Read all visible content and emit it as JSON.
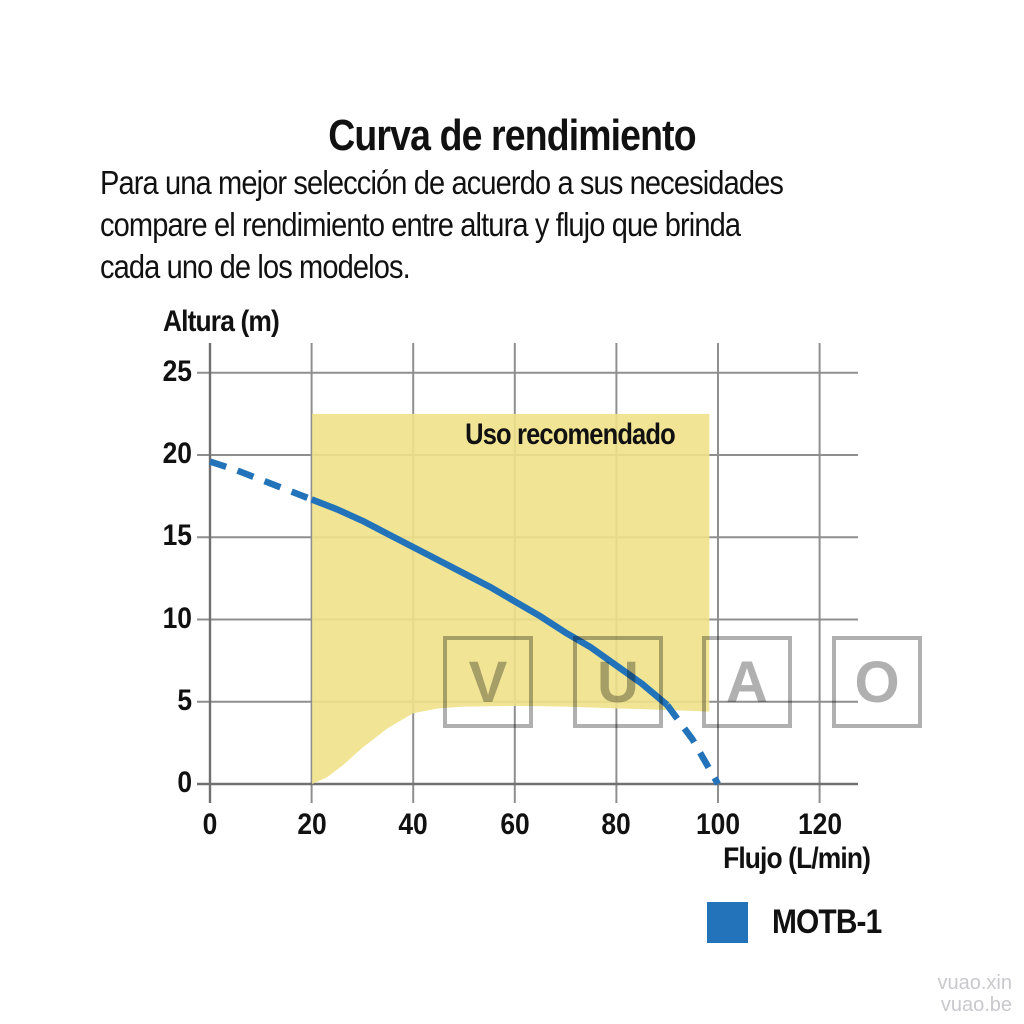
{
  "page": {
    "title": "Curva de rendimiento",
    "intro_lines": [
      "Para una mejor selección de acuerdo a sus necesidades",
      "compare el rendimiento entre altura y flujo que brinda",
      "cada uno de los modelos."
    ]
  },
  "chart_data": {
    "type": "line",
    "title": "Curva de rendimiento",
    "xlabel": "Flujo (L/min)",
    "ylabel": "Altura (m)",
    "xlim": [
      0,
      127
    ],
    "ylim": [
      0,
      26.8
    ],
    "xticks": [
      0,
      20,
      40,
      60,
      80,
      100,
      120
    ],
    "yticks": [
      0,
      5,
      10,
      15,
      20,
      25
    ],
    "grid": true,
    "series": [
      {
        "name": "MOTB-1",
        "color": "#2273b9",
        "segments": [
          {
            "style": "dashed",
            "points": [
              [
                0,
                19.6
              ],
              [
                5,
                19.1
              ],
              [
                10,
                18.5
              ],
              [
                15,
                17.9
              ],
              [
                20,
                17.3
              ]
            ]
          },
          {
            "style": "solid",
            "points": [
              [
                20,
                17.3
              ],
              [
                25,
                16.7
              ],
              [
                30,
                16.0
              ],
              [
                35,
                15.2
              ],
              [
                40,
                14.4
              ],
              [
                45,
                13.6
              ],
              [
                50,
                12.8
              ],
              [
                55,
                12.0
              ],
              [
                60,
                11.1
              ],
              [
                65,
                10.2
              ],
              [
                70,
                9.2
              ],
              [
                75,
                8.3
              ],
              [
                80,
                7.2
              ],
              [
                85,
                6.1
              ],
              [
                90,
                4.8
              ]
            ]
          },
          {
            "style": "dashed",
            "points": [
              [
                90,
                4.8
              ],
              [
                95,
                2.7
              ],
              [
                100,
                0
              ]
            ]
          }
        ]
      }
    ],
    "recommended_region": {
      "label": "Uso recomendado",
      "color": "#efe28a",
      "points": [
        [
          20.1,
          22.5
        ],
        [
          98.3,
          22.5
        ],
        [
          98.3,
          4.4
        ],
        [
          90,
          4.5
        ],
        [
          80,
          4.6
        ],
        [
          70,
          4.7
        ],
        [
          60,
          4.75
        ],
        [
          50,
          4.7
        ],
        [
          45,
          4.6
        ],
        [
          40,
          4.3
        ],
        [
          35,
          3.4
        ],
        [
          30,
          2.2
        ],
        [
          26,
          1.1
        ],
        [
          23,
          0.4
        ],
        [
          20.1,
          0
        ]
      ]
    },
    "legend": {
      "position": "bottom-right",
      "items": [
        {
          "label": "MOTB-1",
          "color": "#2273b9"
        }
      ]
    }
  },
  "watermark": {
    "letters": [
      "V",
      "U",
      "A",
      "O"
    ],
    "site_lines": [
      "vuao.xin",
      "vuao.be"
    ]
  },
  "colors": {
    "grid_gray": "#8f8f8f",
    "axis_gray": "#707070",
    "text_black": "#111111",
    "watermark_gray": "#b0b0b0"
  }
}
